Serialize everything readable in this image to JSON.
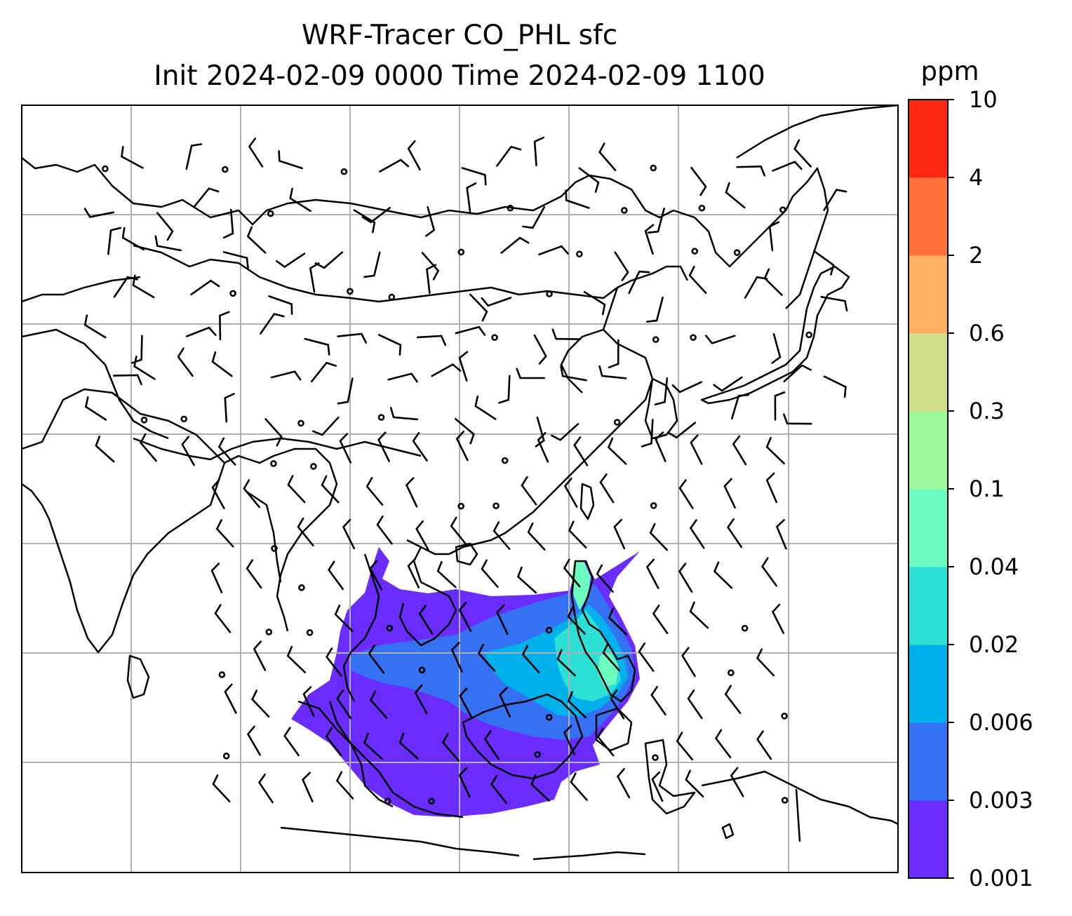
{
  "chart_data": {
    "type": "heatmap",
    "title": "WRF-Tracer CO_PHL sfc",
    "subtitle": "Init 2024-02-09 0000 Time 2024-02-09 1100",
    "colorbar": {
      "unit": "ppm",
      "levels": [
        "0.001",
        "0.003",
        "0.006",
        "0.02",
        "0.04",
        "0.1",
        "0.3",
        "0.6",
        "2",
        "4",
        "10"
      ],
      "colors": [
        "#6a2cff",
        "#3572f3",
        "#00b0ea",
        "#2de0d6",
        "#6cfcc0",
        "#9ef79a",
        "#d0e08a",
        "#fdb062",
        "#ff703b",
        "#ff2a14"
      ]
    },
    "map": {
      "region": "East / Southeast Asia",
      "features": [
        "coastlines",
        "gridlines",
        "wind barbs"
      ],
      "grid": true,
      "plume": "CO tracer concentrated over the South China Sea, Philippines, Borneo and Sumatra; highest values near the Philippines",
      "background_color": "#ffffff",
      "line_color": "#000000",
      "grid_color": "#b0b0b0"
    }
  }
}
